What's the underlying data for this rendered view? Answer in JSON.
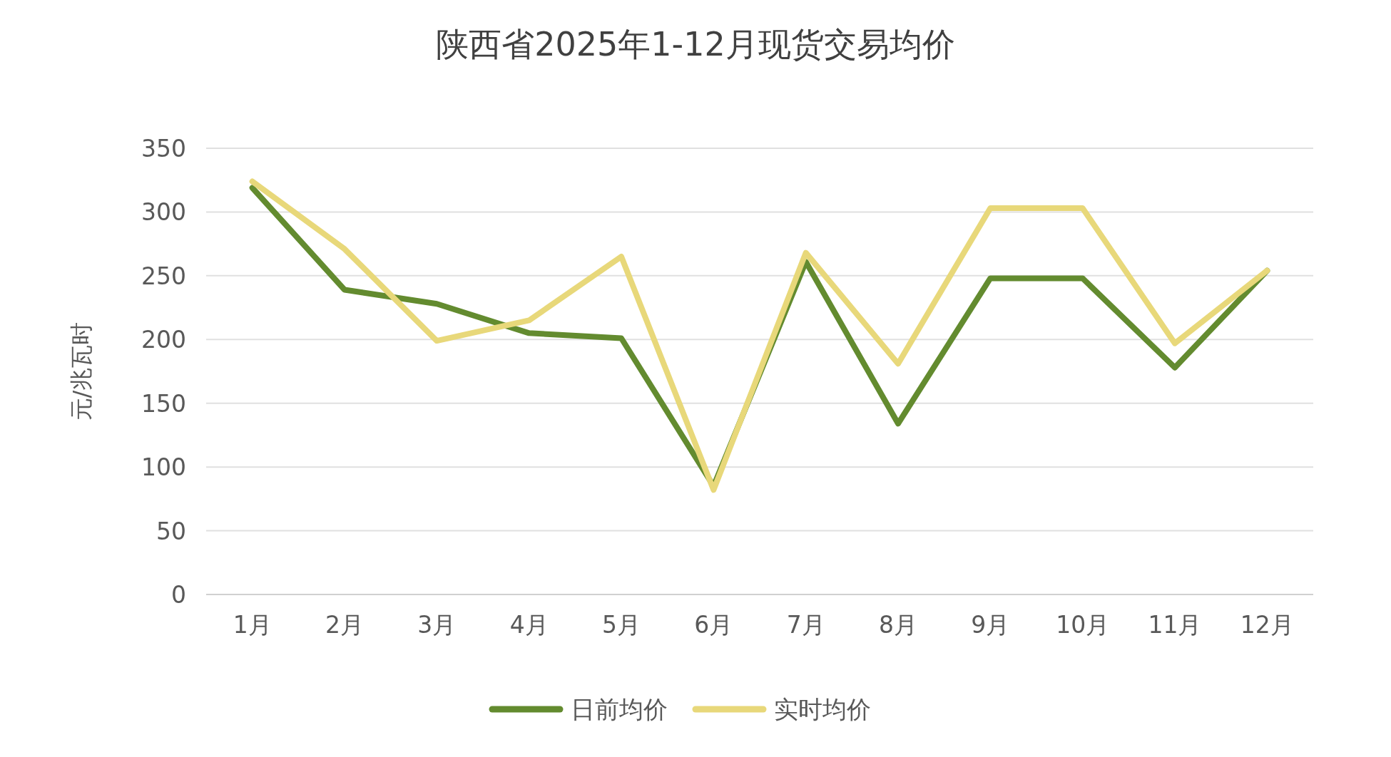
{
  "chart_data": {
    "type": "line",
    "title": "陕西省2025年1-12月现货交易均价",
    "ylabel": "元/兆瓦时",
    "categories": [
      "1月",
      "2月",
      "3月",
      "4月",
      "5月",
      "6月",
      "7月",
      "8月",
      "9月",
      "10月",
      "11月",
      "12月"
    ],
    "series": [
      {
        "name": "日前均价",
        "color": "#638b2f",
        "values": [
          319,
          239,
          228,
          205,
          201,
          85,
          261,
          134,
          248,
          248,
          178,
          254
        ]
      },
      {
        "name": "实时均价",
        "color": "#e8d87a",
        "values": [
          324,
          271,
          199,
          215,
          265,
          82,
          268,
          181,
          303,
          303,
          197,
          254
        ]
      }
    ],
    "ylim": [
      0,
      350
    ],
    "yticks": [
      0,
      50,
      100,
      150,
      200,
      250,
      300,
      350
    ],
    "grid": "y",
    "legend": "bottom",
    "marker": "none",
    "line_style": "solid"
  }
}
